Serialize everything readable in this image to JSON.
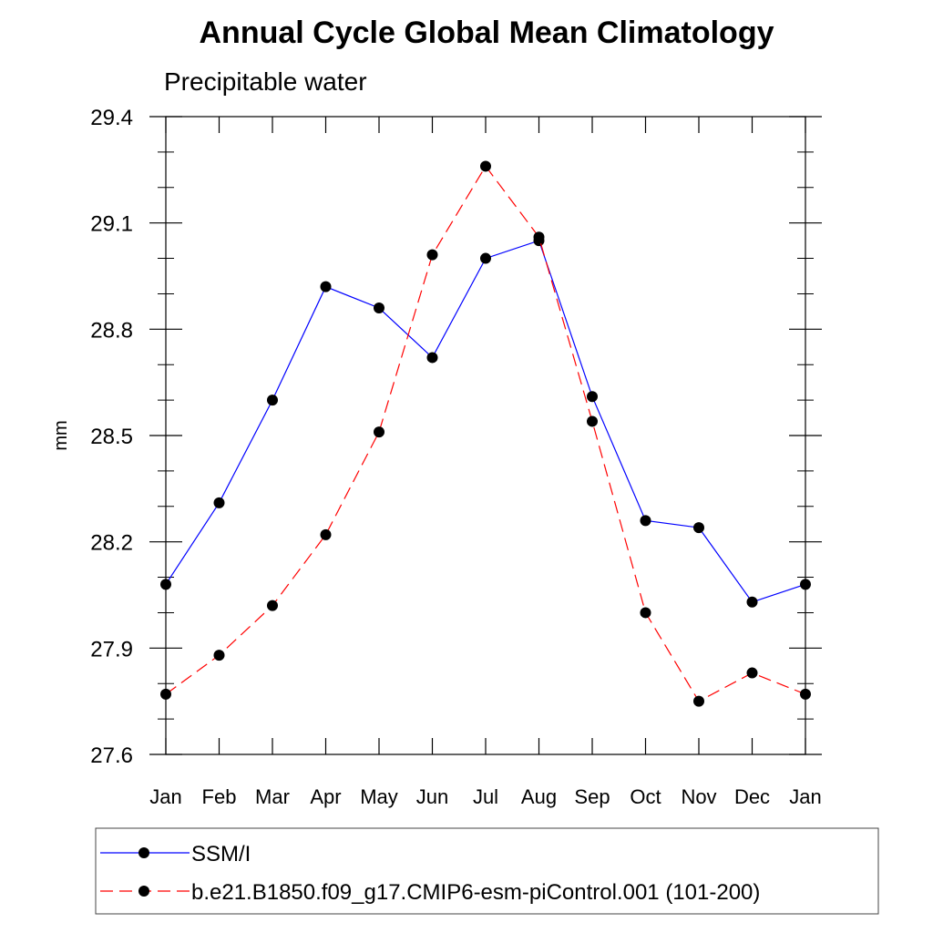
{
  "chart_data": {
    "type": "line",
    "title": "Annual Cycle Global Mean Climatology",
    "subtitle": "Precipitable water",
    "xlabel": "",
    "ylabel": "mm",
    "categories": [
      "Jan",
      "Feb",
      "Mar",
      "Apr",
      "May",
      "Jun",
      "Jul",
      "Aug",
      "Sep",
      "Oct",
      "Nov",
      "Dec",
      "Jan"
    ],
    "ylim": [
      27.6,
      29.4
    ],
    "yticks": [
      27.6,
      27.9,
      28.2,
      28.5,
      28.8,
      29.1,
      29.4
    ],
    "ytick_labels": [
      "27.6",
      "27.9",
      "28.2",
      "28.5",
      "28.8",
      "29.1",
      "29.4"
    ],
    "yminor_step": 0.1,
    "grid": false,
    "legend_position": "bottom",
    "series": [
      {
        "name": "SSM/I",
        "color": "#0000ff",
        "line_style": "solid",
        "marker": "filled-circle",
        "values": [
          28.08,
          28.31,
          28.6,
          28.92,
          28.86,
          28.72,
          29.0,
          29.05,
          28.61,
          28.26,
          28.24,
          28.03,
          28.08
        ]
      },
      {
        "name": "b.e21.B1850.f09_g17.CMIP6-esm-piControl.001 (101-200)",
        "color": "#ff0000",
        "line_style": "dashed",
        "marker": "filled-circle",
        "values": [
          27.77,
          27.88,
          28.02,
          28.22,
          28.51,
          29.01,
          29.26,
          29.06,
          28.54,
          28.0,
          27.75,
          27.83,
          27.77
        ]
      }
    ]
  }
}
